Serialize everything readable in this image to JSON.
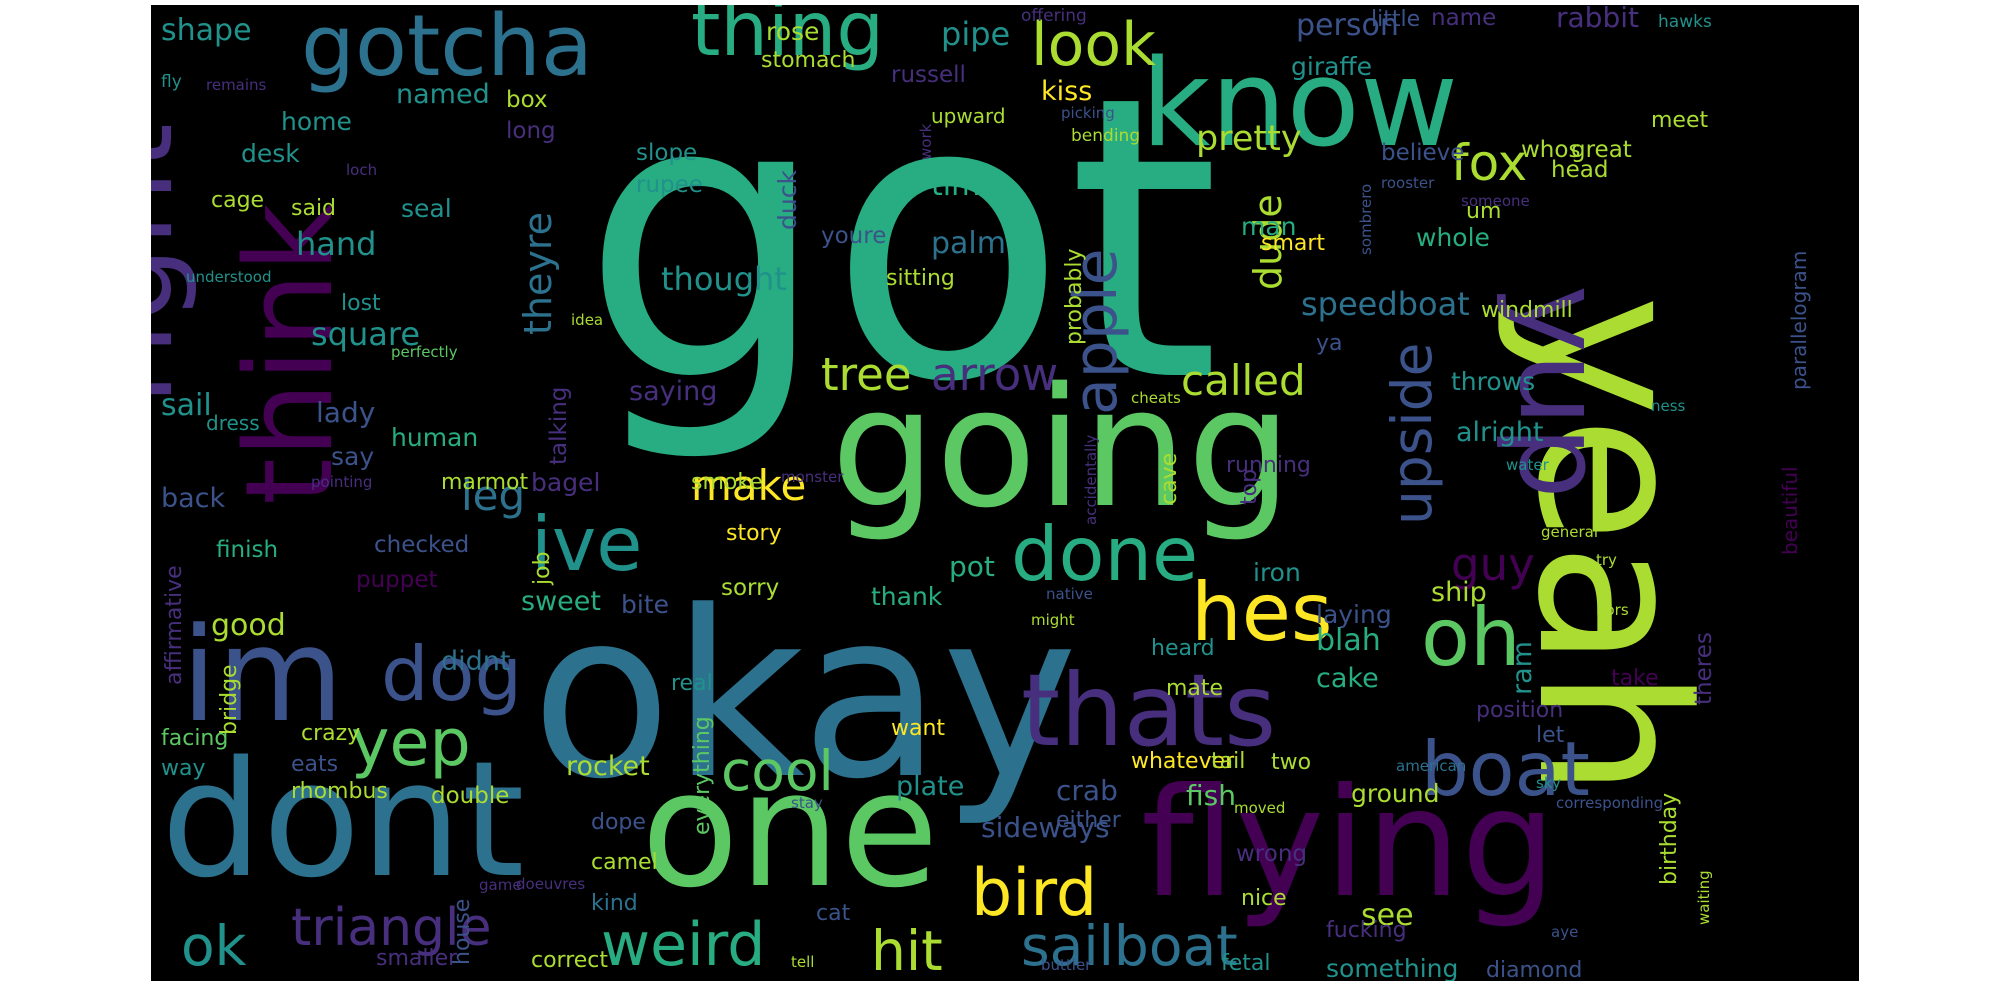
{
  "palette": {
    "dpurple": "#440154",
    "purple": "#472f7d",
    "indigo": "#3b528b",
    "blue": "#2c718e",
    "teal": "#21918c",
    "green": "#27ad81",
    "lgreen": "#5cc863",
    "lime": "#aadc32",
    "yellow": "#fde725"
  },
  "words": [
    {
      "text": "got",
      "color": "green"
    },
    {
      "text": "okay",
      "color": "blue"
    },
    {
      "text": "yeah",
      "color": "lime"
    },
    {
      "text": "going",
      "color": "lgreen"
    },
    {
      "text": "dont",
      "color": "blue"
    },
    {
      "text": "one",
      "color": "lgreen"
    },
    {
      "text": "flying",
      "color": "dpurple"
    },
    {
      "text": "know",
      "color": "green"
    },
    {
      "text": "right",
      "color": "purple"
    },
    {
      "text": "think",
      "color": "dpurple"
    },
    {
      "text": "yup",
      "color": "purple"
    },
    {
      "text": "im",
      "color": "indigo"
    },
    {
      "text": "thats",
      "color": "purple"
    },
    {
      "text": "gotcha",
      "color": "blue"
    },
    {
      "text": "thing",
      "color": "green"
    },
    {
      "text": "done",
      "color": "green"
    },
    {
      "text": "ive",
      "color": "teal"
    },
    {
      "text": "hes",
      "color": "yellow"
    },
    {
      "text": "oh",
      "color": "lgreen"
    },
    {
      "text": "boat",
      "color": "indigo"
    },
    {
      "text": "dog",
      "color": "indigo"
    },
    {
      "text": "yep",
      "color": "lgreen"
    },
    {
      "text": "bird",
      "color": "yellow"
    },
    {
      "text": "apple",
      "color": "indigo"
    },
    {
      "text": "upside",
      "color": "indigo"
    },
    {
      "text": "look",
      "color": "lime"
    },
    {
      "text": "weird",
      "color": "green"
    },
    {
      "text": "sailboat",
      "color": "blue"
    },
    {
      "text": "cool",
      "color": "lgreen"
    },
    {
      "text": "triangle",
      "color": "purple"
    },
    {
      "text": "ok",
      "color": "teal"
    },
    {
      "text": "hit",
      "color": "lime"
    },
    {
      "text": "fox",
      "color": "lime"
    },
    {
      "text": "guy",
      "color": "dpurple"
    },
    {
      "text": "tree",
      "color": "lime"
    },
    {
      "text": "arrow",
      "color": "purple"
    },
    {
      "text": "called",
      "color": "lime"
    },
    {
      "text": "make",
      "color": "yellow"
    },
    {
      "text": "leg",
      "color": "blue"
    },
    {
      "text": "theyre",
      "color": "blue"
    },
    {
      "text": "dude",
      "color": "lime"
    },
    {
      "text": "pretty",
      "color": "lime"
    },
    {
      "text": "speedboat",
      "color": "blue"
    },
    {
      "text": "palm",
      "color": "blue"
    },
    {
      "text": "thought",
      "color": "teal"
    },
    {
      "text": "pipe",
      "color": "teal"
    },
    {
      "text": "rose",
      "color": "lime"
    },
    {
      "text": "shape",
      "color": "teal"
    },
    {
      "text": "person",
      "color": "indigo"
    },
    {
      "text": "giraffe",
      "color": "teal"
    },
    {
      "text": "name",
      "color": "purple"
    },
    {
      "text": "rabbit",
      "color": "purple"
    },
    {
      "text": "little",
      "color": "indigo"
    },
    {
      "text": "hawks",
      "color": "teal"
    },
    {
      "text": "offering",
      "color": "purple"
    },
    {
      "text": "stomach",
      "color": "lime"
    },
    {
      "text": "russell",
      "color": "purple"
    },
    {
      "text": "fly",
      "color": "teal"
    },
    {
      "text": "remains",
      "color": "purple"
    },
    {
      "text": "kiss",
      "color": "yellow"
    },
    {
      "text": "picking",
      "color": "indigo"
    },
    {
      "text": "meet",
      "color": "lime"
    },
    {
      "text": "named",
      "color": "teal"
    },
    {
      "text": "box",
      "color": "lime"
    },
    {
      "text": "home",
      "color": "teal"
    },
    {
      "text": "long",
      "color": "purple"
    },
    {
      "text": "upward",
      "color": "lime"
    },
    {
      "text": "bending",
      "color": "lime"
    },
    {
      "text": "desk",
      "color": "teal"
    },
    {
      "text": "slope",
      "color": "teal"
    },
    {
      "text": "rupee",
      "color": "teal"
    },
    {
      "text": "believe",
      "color": "indigo"
    },
    {
      "text": "whos",
      "color": "lime"
    },
    {
      "text": "great",
      "color": "lime"
    },
    {
      "text": "head",
      "color": "lime"
    },
    {
      "text": "loch",
      "color": "purple"
    },
    {
      "text": "work",
      "color": "purple"
    },
    {
      "text": "rooster",
      "color": "indigo"
    },
    {
      "text": "someone",
      "color": "purple"
    },
    {
      "text": "parallelogram",
      "color": "indigo"
    },
    {
      "text": "cage",
      "color": "lime"
    },
    {
      "text": "said",
      "color": "lime"
    },
    {
      "text": "seal",
      "color": "teal"
    },
    {
      "text": "time",
      "color": "green"
    },
    {
      "text": "duck",
      "color": "indigo"
    },
    {
      "text": "youre",
      "color": "indigo"
    },
    {
      "text": "man",
      "color": "green"
    },
    {
      "text": "um",
      "color": "lime"
    },
    {
      "text": "smart",
      "color": "yellow"
    },
    {
      "text": "whole",
      "color": "green"
    },
    {
      "text": "hand",
      "color": "teal"
    },
    {
      "text": "understood",
      "color": "teal"
    },
    {
      "text": "sitting",
      "color": "lime"
    },
    {
      "text": "sombrero",
      "color": "indigo"
    },
    {
      "text": "lost",
      "color": "teal"
    },
    {
      "text": "square",
      "color": "teal"
    },
    {
      "text": "idea",
      "color": "lime"
    },
    {
      "text": "probably",
      "color": "lime"
    },
    {
      "text": "windmill",
      "color": "lime"
    },
    {
      "text": "ya",
      "color": "indigo"
    },
    {
      "text": "perfectly",
      "color": "lgreen"
    },
    {
      "text": "sail",
      "color": "teal"
    },
    {
      "text": "saying",
      "color": "purple"
    },
    {
      "text": "throws",
      "color": "teal"
    },
    {
      "text": "ness",
      "color": "teal"
    },
    {
      "text": "cheats",
      "color": "lime"
    },
    {
      "text": "dress",
      "color": "teal"
    },
    {
      "text": "lady",
      "color": "indigo"
    },
    {
      "text": "talking",
      "color": "purple"
    },
    {
      "text": "human",
      "color": "green"
    },
    {
      "text": "alright",
      "color": "teal"
    },
    {
      "text": "accidentally",
      "color": "purple"
    },
    {
      "text": "beautiful",
      "color": "dpurple"
    },
    {
      "text": "say",
      "color": "indigo"
    },
    {
      "text": "running",
      "color": "purple"
    },
    {
      "text": "water",
      "color": "teal"
    },
    {
      "text": "monster",
      "color": "purple"
    },
    {
      "text": "marmot",
      "color": "lime"
    },
    {
      "text": "pointing",
      "color": "purple"
    },
    {
      "text": "bagel",
      "color": "purple"
    },
    {
      "text": "smoke",
      "color": "lime"
    },
    {
      "text": "back",
      "color": "indigo"
    },
    {
      "text": "story",
      "color": "yellow"
    },
    {
      "text": "cave",
      "color": "lime"
    },
    {
      "text": "top",
      "color": "purple"
    },
    {
      "text": "affirmative",
      "color": "purple"
    },
    {
      "text": "finish",
      "color": "green"
    },
    {
      "text": "checked",
      "color": "indigo"
    },
    {
      "text": "general",
      "color": "lime"
    },
    {
      "text": "pot",
      "color": "green"
    },
    {
      "text": "iron",
      "color": "teal"
    },
    {
      "text": "job",
      "color": "lime"
    },
    {
      "text": "try",
      "color": "lime"
    },
    {
      "text": "puppet",
      "color": "dpurple"
    },
    {
      "text": "sorry",
      "color": "lime"
    },
    {
      "text": "thank",
      "color": "green"
    },
    {
      "text": "ship",
      "color": "lime"
    },
    {
      "text": "native",
      "color": "indigo"
    },
    {
      "text": "might",
      "color": "lime"
    },
    {
      "text": "hors",
      "color": "lime"
    },
    {
      "text": "sweet",
      "color": "green"
    },
    {
      "text": "bite",
      "color": "indigo"
    },
    {
      "text": "laying",
      "color": "indigo"
    },
    {
      "text": "good",
      "color": "lime"
    },
    {
      "text": "blah",
      "color": "green"
    },
    {
      "text": "heard",
      "color": "teal"
    },
    {
      "text": "bridge",
      "color": "lime"
    },
    {
      "text": "didnt",
      "color": "blue"
    },
    {
      "text": "ram",
      "color": "teal"
    },
    {
      "text": "cake",
      "color": "green"
    },
    {
      "text": "take",
      "color": "dpurple"
    },
    {
      "text": "theres",
      "color": "purple"
    },
    {
      "text": "mate",
      "color": "lime"
    },
    {
      "text": "real",
      "color": "teal"
    },
    {
      "text": "position",
      "color": "purple"
    },
    {
      "text": "let",
      "color": "indigo"
    },
    {
      "text": "want",
      "color": "yellow"
    },
    {
      "text": "facing",
      "color": "lgreen"
    },
    {
      "text": "crazy",
      "color": "lime"
    },
    {
      "text": "everything",
      "color": "lgreen"
    },
    {
      "text": "whatever",
      "color": "yellow"
    },
    {
      "text": "two",
      "color": "lime"
    },
    {
      "text": "american",
      "color": "blue"
    },
    {
      "text": "sky",
      "color": "teal"
    },
    {
      "text": "way",
      "color": "teal"
    },
    {
      "text": "eats",
      "color": "indigo"
    },
    {
      "text": "rocket",
      "color": "lime"
    },
    {
      "text": "crab",
      "color": "indigo"
    },
    {
      "text": "either",
      "color": "indigo"
    },
    {
      "text": "fish",
      "color": "lgreen"
    },
    {
      "text": "ground",
      "color": "lime"
    },
    {
      "text": "stay",
      "color": "indigo"
    },
    {
      "text": "corresponding",
      "color": "indigo"
    },
    {
      "text": "rhombus",
      "color": "lime"
    },
    {
      "text": "double",
      "color": "lime"
    },
    {
      "text": "plate",
      "color": "teal"
    },
    {
      "text": "tail",
      "color": "lime"
    },
    {
      "text": "moved",
      "color": "lime"
    },
    {
      "text": "birthday",
      "color": "lime"
    },
    {
      "text": "dope",
      "color": "indigo"
    },
    {
      "text": "sideways",
      "color": "indigo"
    },
    {
      "text": "wrong",
      "color": "purple"
    },
    {
      "text": "game",
      "color": "purple"
    },
    {
      "text": "camel",
      "color": "lime"
    },
    {
      "text": "house",
      "color": "indigo"
    },
    {
      "text": "doeuvres",
      "color": "purple"
    },
    {
      "text": "nice",
      "color": "lime"
    },
    {
      "text": "waiting",
      "color": "lime"
    },
    {
      "text": "kind",
      "color": "blue"
    },
    {
      "text": "cat",
      "color": "indigo"
    },
    {
      "text": "see",
      "color": "lime"
    },
    {
      "text": "fucking",
      "color": "purple"
    },
    {
      "text": "aye",
      "color": "indigo"
    },
    {
      "text": "something",
      "color": "teal"
    },
    {
      "text": "diamond",
      "color": "indigo"
    },
    {
      "text": "smaller",
      "color": "purple"
    },
    {
      "text": "correct",
      "color": "lime"
    },
    {
      "text": "tell",
      "color": "lime"
    },
    {
      "text": "buttler",
      "color": "indigo"
    },
    {
      "text": "fetal",
      "color": "teal"
    }
  ]
}
